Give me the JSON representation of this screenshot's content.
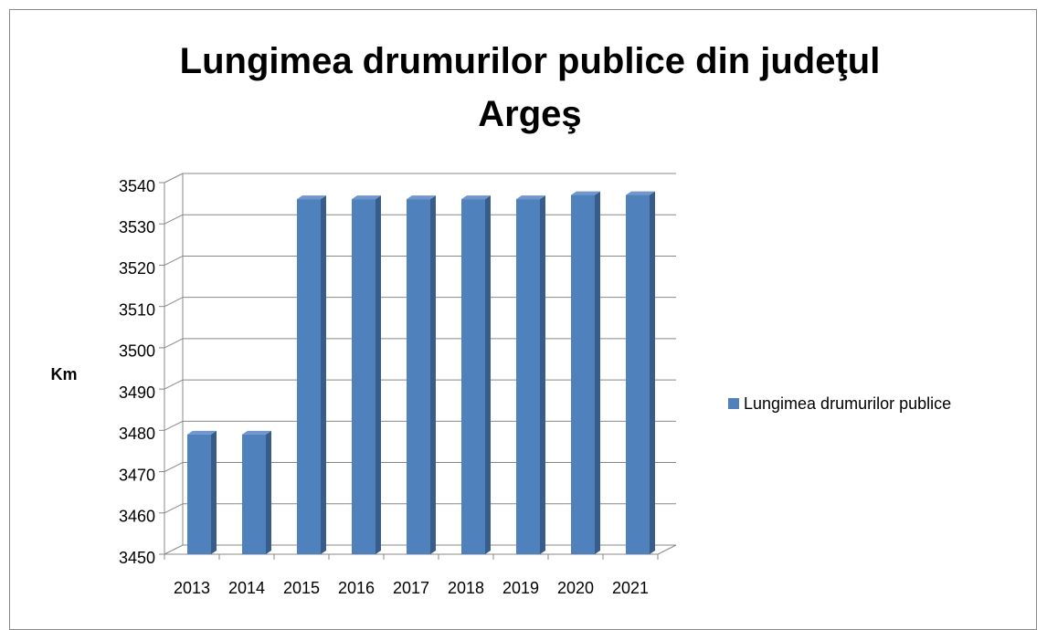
{
  "chart_data": {
    "type": "bar",
    "title": "Lungimea drumurilor publice din judeţul Argeş",
    "y_label": "Km",
    "categories": [
      "2013",
      "2014",
      "2015",
      "2016",
      "2017",
      "2018",
      "2019",
      "2020",
      "2021"
    ],
    "series": [
      {
        "name": "Lungimea drumurilor publice",
        "color": "#4f81bd",
        "values": [
          3479,
          3479,
          3536,
          3536,
          3536,
          3536,
          3536,
          3537,
          3537
        ]
      }
    ],
    "ylim": [
      3450,
      3540
    ],
    "yticks": [
      3450,
      3460,
      3470,
      3480,
      3490,
      3500,
      3510,
      3520,
      3530,
      3540
    ],
    "grid": true,
    "legend": "right"
  }
}
